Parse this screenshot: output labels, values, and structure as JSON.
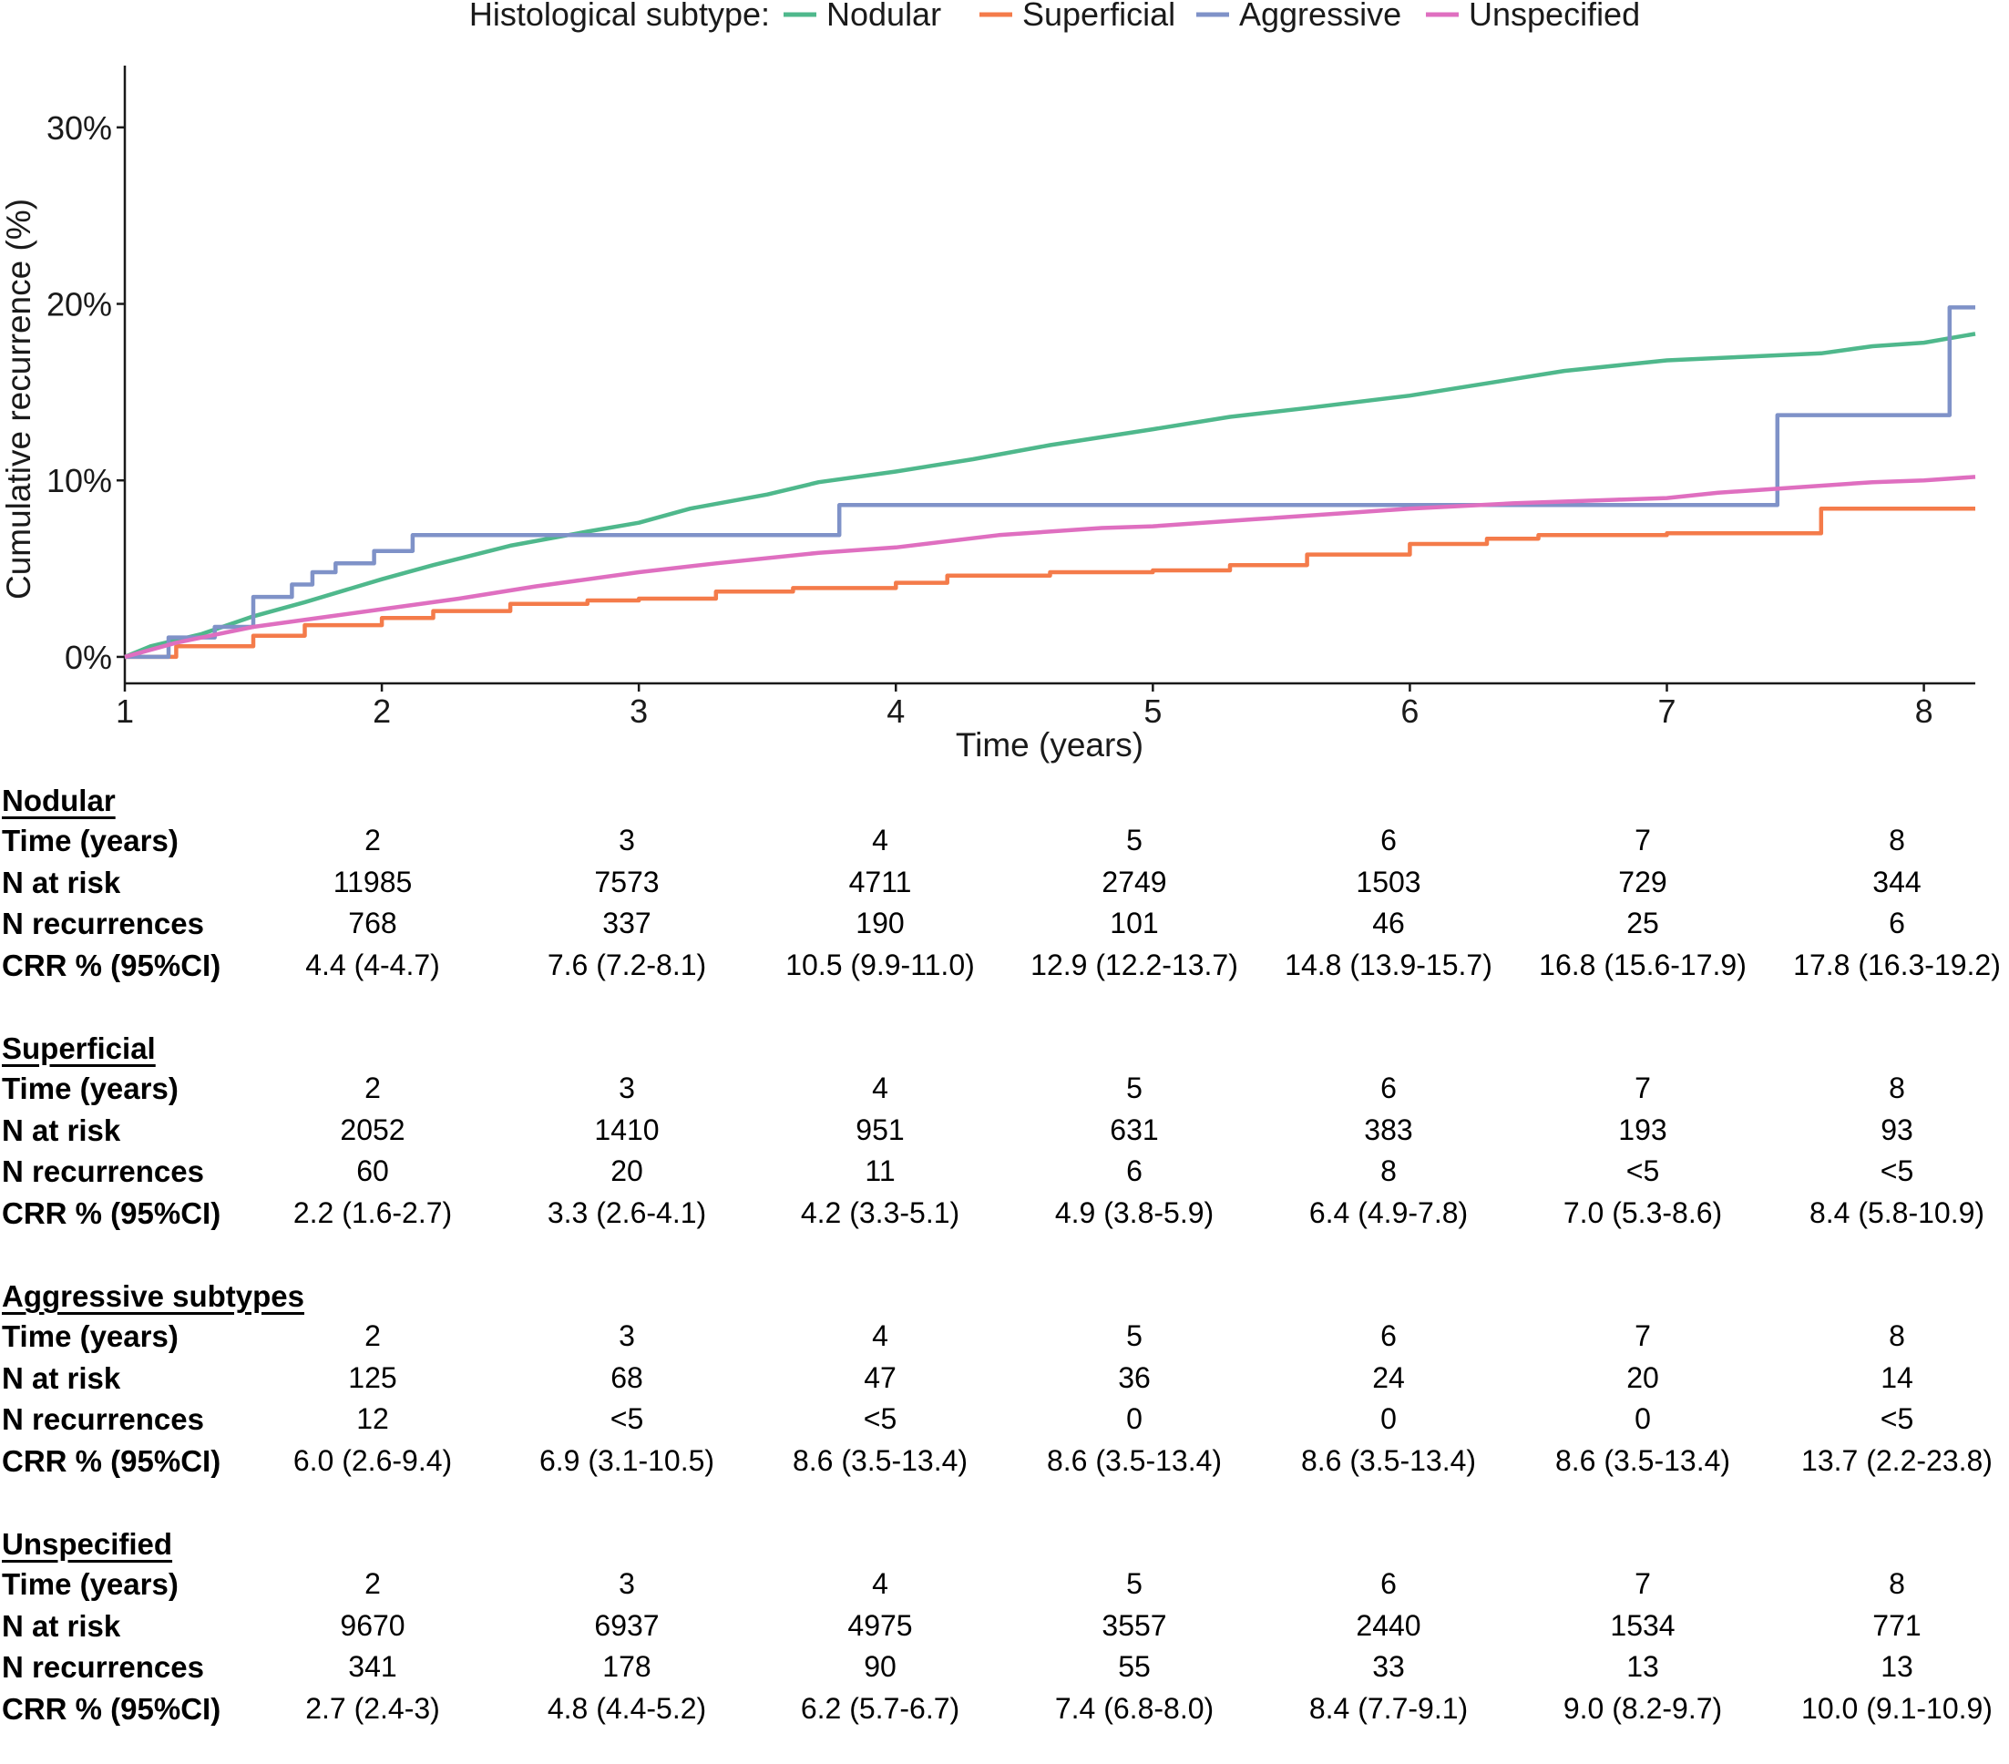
{
  "legend": {
    "title": "Histological subtype:",
    "items": [
      {
        "label": "Nodular",
        "color": "#4fb88c"
      },
      {
        "label": "Superficial",
        "color": "#f47b4a"
      },
      {
        "label": "Aggressive",
        "color": "#7f92c8"
      },
      {
        "label": "Unspecified",
        "color": "#df6fc0"
      }
    ]
  },
  "chart_data": {
    "type": "line",
    "xlabel": "Time (years)",
    "ylabel": "Cumulative recurrence (%)",
    "xlim": [
      1,
      8.2
    ],
    "ylim": [
      -1.5,
      33.5
    ],
    "x_ticks": [
      1,
      2,
      3,
      4,
      5,
      6,
      7,
      8
    ],
    "y_ticks": [
      0,
      10,
      20,
      30
    ],
    "y_tick_labels": [
      "0%",
      "10%",
      "20%",
      "30%"
    ],
    "grid": false,
    "legend_position": "top",
    "series": [
      {
        "name": "Nodular",
        "color": "#4fb88c",
        "step": false,
        "points": [
          [
            1,
            0
          ],
          [
            1.1,
            0.6
          ],
          [
            1.3,
            1.3
          ],
          [
            1.5,
            2.3
          ],
          [
            1.7,
            3.1
          ],
          [
            2,
            4.4
          ],
          [
            2.2,
            5.2
          ],
          [
            2.5,
            6.3
          ],
          [
            2.8,
            7.1
          ],
          [
            3,
            7.6
          ],
          [
            3.2,
            8.4
          ],
          [
            3.5,
            9.2
          ],
          [
            3.7,
            9.9
          ],
          [
            4,
            10.5
          ],
          [
            4.3,
            11.2
          ],
          [
            4.6,
            12.0
          ],
          [
            5,
            12.9
          ],
          [
            5.3,
            13.6
          ],
          [
            5.6,
            14.1
          ],
          [
            6,
            14.8
          ],
          [
            6.3,
            15.5
          ],
          [
            6.6,
            16.2
          ],
          [
            7,
            16.8
          ],
          [
            7.3,
            17.0
          ],
          [
            7.6,
            17.2
          ],
          [
            7.8,
            17.6
          ],
          [
            8,
            17.8
          ],
          [
            8.2,
            18.3
          ]
        ]
      },
      {
        "name": "Superficial",
        "color": "#f47b4a",
        "step": true,
        "points": [
          [
            1,
            0
          ],
          [
            1.2,
            0.6
          ],
          [
            1.5,
            1.2
          ],
          [
            1.7,
            1.8
          ],
          [
            2,
            2.2
          ],
          [
            2.2,
            2.6
          ],
          [
            2.5,
            3.0
          ],
          [
            2.8,
            3.2
          ],
          [
            3,
            3.3
          ],
          [
            3.3,
            3.7
          ],
          [
            3.6,
            3.9
          ],
          [
            4,
            4.2
          ],
          [
            4.2,
            4.6
          ],
          [
            4.6,
            4.8
          ],
          [
            5,
            4.9
          ],
          [
            5.3,
            5.2
          ],
          [
            5.6,
            5.8
          ],
          [
            6,
            6.4
          ],
          [
            6.3,
            6.7
          ],
          [
            6.5,
            6.9
          ],
          [
            7,
            7.0
          ],
          [
            7.57,
            7.0
          ],
          [
            7.6,
            8.4
          ],
          [
            8.2,
            8.4
          ]
        ]
      },
      {
        "name": "Aggressive",
        "color": "#7f92c8",
        "step": true,
        "points": [
          [
            1,
            0
          ],
          [
            1.17,
            0
          ],
          [
            1.17,
            1.1
          ],
          [
            1.35,
            1.1
          ],
          [
            1.35,
            1.7
          ],
          [
            1.5,
            1.7
          ],
          [
            1.5,
            3.4
          ],
          [
            1.65,
            3.4
          ],
          [
            1.65,
            4.1
          ],
          [
            1.73,
            4.1
          ],
          [
            1.73,
            4.8
          ],
          [
            1.82,
            4.8
          ],
          [
            1.82,
            5.3
          ],
          [
            1.97,
            5.3
          ],
          [
            1.97,
            6.0
          ],
          [
            2.12,
            6.0
          ],
          [
            2.12,
            6.9
          ],
          [
            3.78,
            6.9
          ],
          [
            3.78,
            8.6
          ],
          [
            7.43,
            8.6
          ],
          [
            7.43,
            13.7
          ],
          [
            8.1,
            13.7
          ],
          [
            8.1,
            19.8
          ],
          [
            8.2,
            19.8
          ]
        ]
      },
      {
        "name": "Unspecified",
        "color": "#df6fc0",
        "step": false,
        "points": [
          [
            1,
            0
          ],
          [
            1.2,
            0.8
          ],
          [
            1.5,
            1.7
          ],
          [
            1.8,
            2.3
          ],
          [
            2,
            2.7
          ],
          [
            2.3,
            3.3
          ],
          [
            2.6,
            4.0
          ],
          [
            3,
            4.8
          ],
          [
            3.3,
            5.3
          ],
          [
            3.7,
            5.9
          ],
          [
            4,
            6.2
          ],
          [
            4.4,
            6.9
          ],
          [
            4.8,
            7.3
          ],
          [
            5,
            7.4
          ],
          [
            5.4,
            7.8
          ],
          [
            5.8,
            8.2
          ],
          [
            6,
            8.4
          ],
          [
            6.4,
            8.7
          ],
          [
            6.8,
            8.9
          ],
          [
            7,
            9.0
          ],
          [
            7.2,
            9.3
          ],
          [
            7.5,
            9.6
          ],
          [
            7.8,
            9.9
          ],
          [
            8,
            10.0
          ],
          [
            8.2,
            10.2
          ]
        ]
      }
    ]
  },
  "tables": [
    {
      "title": "Nodular",
      "rows": [
        {
          "label": "Time (years)",
          "values": [
            "2",
            "3",
            "4",
            "5",
            "6",
            "7",
            "8"
          ]
        },
        {
          "label": "N at risk",
          "values": [
            "11985",
            "7573",
            "4711",
            "2749",
            "1503",
            "729",
            "344"
          ]
        },
        {
          "label": "N recurrences",
          "values": [
            "768",
            "337",
            "190",
            "101",
            "46",
            "25",
            "6"
          ]
        },
        {
          "label": "CRR % (95%CI)",
          "values": [
            "4.4 (4-4.7)",
            "7.6 (7.2-8.1)",
            "10.5 (9.9-11.0)",
            "12.9 (12.2-13.7)",
            "14.8 (13.9-15.7)",
            "16.8 (15.6-17.9)",
            "17.8 (16.3-19.2)"
          ]
        }
      ]
    },
    {
      "title": "Superficial",
      "rows": [
        {
          "label": "Time (years)",
          "values": [
            "2",
            "3",
            "4",
            "5",
            "6",
            "7",
            "8"
          ]
        },
        {
          "label": "N at risk",
          "values": [
            "2052",
            "1410",
            "951",
            "631",
            "383",
            "193",
            "93"
          ]
        },
        {
          "label": "N recurrences",
          "values": [
            "60",
            "20",
            "11",
            "6",
            "8",
            "<5",
            "<5"
          ]
        },
        {
          "label": "CRR % (95%CI)",
          "values": [
            "2.2 (1.6-2.7)",
            "3.3 (2.6-4.1)",
            "4.2 (3.3-5.1)",
            "4.9 (3.8-5.9)",
            "6.4 (4.9-7.8)",
            "7.0 (5.3-8.6)",
            "8.4 (5.8-10.9)"
          ]
        }
      ]
    },
    {
      "title": "Aggressive subtypes",
      "rows": [
        {
          "label": "Time (years)",
          "values": [
            "2",
            "3",
            "4",
            "5",
            "6",
            "7",
            "8"
          ]
        },
        {
          "label": "N at risk",
          "values": [
            "125",
            "68",
            "47",
            "36",
            "24",
            "20",
            "14"
          ]
        },
        {
          "label": "N recurrences",
          "values": [
            "12",
            "<5",
            "<5",
            "0",
            "0",
            "0",
            "<5"
          ]
        },
        {
          "label": "CRR % (95%CI)",
          "values": [
            "6.0 (2.6-9.4)",
            "6.9 (3.1-10.5)",
            "8.6 (3.5-13.4)",
            "8.6 (3.5-13.4)",
            "8.6 (3.5-13.4)",
            "8.6 (3.5-13.4)",
            "13.7 (2.2-23.8)"
          ]
        }
      ]
    },
    {
      "title": "Unspecified",
      "rows": [
        {
          "label": "Time (years)",
          "values": [
            "2",
            "3",
            "4",
            "5",
            "6",
            "7",
            "8"
          ]
        },
        {
          "label": "N at risk",
          "values": [
            "9670",
            "6937",
            "4975",
            "3557",
            "2440",
            "1534",
            "771"
          ]
        },
        {
          "label": "N recurrences",
          "values": [
            "341",
            "178",
            "90",
            "55",
            "33",
            "13",
            "13"
          ]
        },
        {
          "label": "CRR % (95%CI)",
          "values": [
            "2.7 (2.4-3)",
            "4.8 (4.4-5.2)",
            "6.2 (5.7-6.7)",
            "7.4 (6.8-8.0)",
            "8.4 (7.7-9.1)",
            "9.0 (8.2-9.7)",
            "10.0 (9.1-10.9)"
          ]
        }
      ]
    }
  ]
}
